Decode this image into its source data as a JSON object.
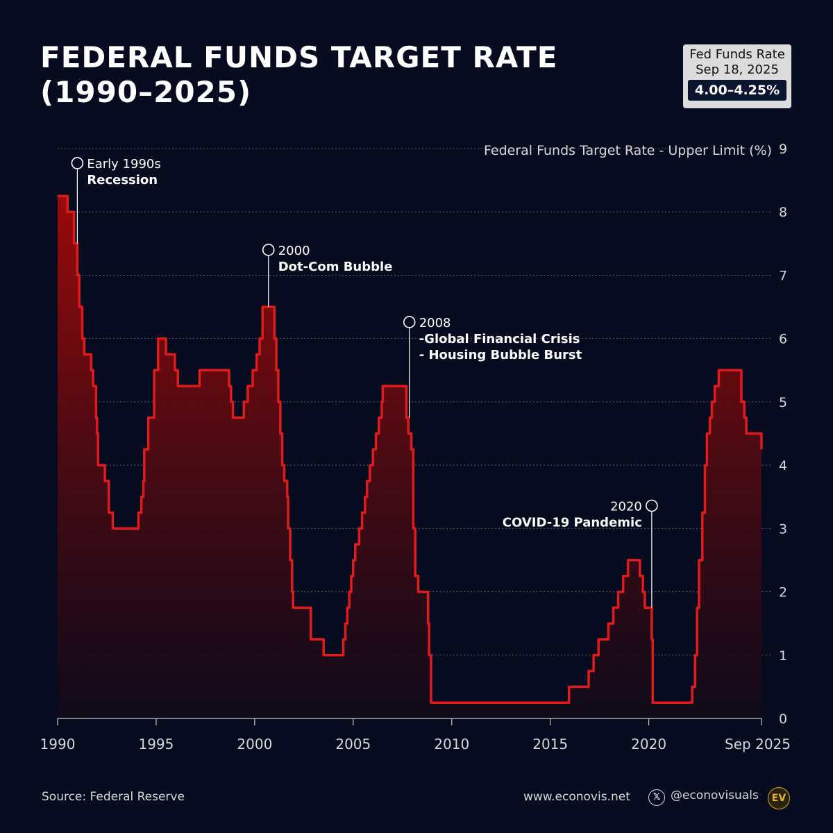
{
  "title": {
    "line1": "FEDERAL FUNDS TARGET RATE",
    "line2": "(1990–2025)"
  },
  "rate_box": {
    "label1": "Fed Funds Rate",
    "label2": "Sep 18, 2025",
    "value": "4.00–4.25%"
  },
  "footer": {
    "source": "Source: Federal Reserve",
    "website": "www.econovis.net",
    "handle": "@econovisuals",
    "x_icon": "x-logo-icon",
    "brand_icon": "EV"
  },
  "colors": {
    "background": "#060b1f",
    "line": "#e01b1b",
    "fill_top": "#9a0a0a",
    "gridline": "#5a5f70",
    "badge": "#dcdcdc"
  },
  "chart_data": {
    "type": "area",
    "ylabel": "Federal Funds Target Rate - Upper Limit (%)",
    "ylim": [
      0,
      9
    ],
    "yticks": [
      0,
      1,
      2,
      3,
      4,
      5,
      6,
      7,
      8,
      9
    ],
    "xlim": [
      1990,
      2025.72
    ],
    "xticks": [
      {
        "value": 1990,
        "label": "1990"
      },
      {
        "value": 1995,
        "label": "1995"
      },
      {
        "value": 2000,
        "label": "2000"
      },
      {
        "value": 2005,
        "label": "2005"
      },
      {
        "value": 2010,
        "label": "2010"
      },
      {
        "value": 2015,
        "label": "2015"
      },
      {
        "value": 2020,
        "label": "2020"
      },
      {
        "value": 2025.72,
        "label": "Sep 2025"
      }
    ],
    "grid": true,
    "step": true,
    "series": [
      {
        "points": [
          [
            1990.0,
            8.25
          ],
          [
            1990.5,
            8.0
          ],
          [
            1990.83,
            7.5
          ],
          [
            1991.0,
            7.0
          ],
          [
            1991.1,
            6.5
          ],
          [
            1991.25,
            6.0
          ],
          [
            1991.35,
            5.75
          ],
          [
            1991.7,
            5.5
          ],
          [
            1991.8,
            5.25
          ],
          [
            1991.95,
            4.75
          ],
          [
            1992.0,
            4.5
          ],
          [
            1992.05,
            4.0
          ],
          [
            1992.4,
            3.75
          ],
          [
            1992.6,
            3.25
          ],
          [
            1992.8,
            3.0
          ],
          [
            1994.1,
            3.25
          ],
          [
            1994.25,
            3.5
          ],
          [
            1994.35,
            3.75
          ],
          [
            1994.4,
            4.25
          ],
          [
            1994.6,
            4.75
          ],
          [
            1994.9,
            5.5
          ],
          [
            1995.1,
            6.0
          ],
          [
            1995.5,
            5.75
          ],
          [
            1995.95,
            5.5
          ],
          [
            1996.1,
            5.25
          ],
          [
            1997.2,
            5.5
          ],
          [
            1998.7,
            5.25
          ],
          [
            1998.8,
            5.0
          ],
          [
            1998.9,
            4.75
          ],
          [
            1999.45,
            5.0
          ],
          [
            1999.65,
            5.25
          ],
          [
            1999.9,
            5.5
          ],
          [
            2000.1,
            5.75
          ],
          [
            2000.25,
            6.0
          ],
          [
            2000.4,
            6.5
          ],
          [
            2001.0,
            6.0
          ],
          [
            2001.1,
            5.5
          ],
          [
            2001.2,
            5.0
          ],
          [
            2001.3,
            4.5
          ],
          [
            2001.4,
            4.0
          ],
          [
            2001.5,
            3.75
          ],
          [
            2001.65,
            3.5
          ],
          [
            2001.7,
            3.0
          ],
          [
            2001.8,
            2.5
          ],
          [
            2001.9,
            2.0
          ],
          [
            2001.95,
            1.75
          ],
          [
            2002.85,
            1.25
          ],
          [
            2003.5,
            1.0
          ],
          [
            2004.5,
            1.25
          ],
          [
            2004.6,
            1.5
          ],
          [
            2004.7,
            1.75
          ],
          [
            2004.8,
            2.0
          ],
          [
            2004.9,
            2.25
          ],
          [
            2005.0,
            2.5
          ],
          [
            2005.1,
            2.75
          ],
          [
            2005.3,
            3.0
          ],
          [
            2005.45,
            3.25
          ],
          [
            2005.6,
            3.5
          ],
          [
            2005.7,
            3.75
          ],
          [
            2005.85,
            4.0
          ],
          [
            2006.0,
            4.25
          ],
          [
            2006.15,
            4.5
          ],
          [
            2006.3,
            4.75
          ],
          [
            2006.45,
            5.0
          ],
          [
            2006.5,
            5.25
          ],
          [
            2007.7,
            4.75
          ],
          [
            2007.8,
            4.5
          ],
          [
            2007.95,
            4.25
          ],
          [
            2008.05,
            3.0
          ],
          [
            2008.15,
            2.25
          ],
          [
            2008.3,
            2.0
          ],
          [
            2008.8,
            1.5
          ],
          [
            2008.85,
            1.0
          ],
          [
            2008.95,
            0.25
          ],
          [
            2015.95,
            0.5
          ],
          [
            2016.95,
            0.75
          ],
          [
            2017.2,
            1.0
          ],
          [
            2017.45,
            1.25
          ],
          [
            2017.95,
            1.5
          ],
          [
            2018.2,
            1.75
          ],
          [
            2018.45,
            2.0
          ],
          [
            2018.7,
            2.25
          ],
          [
            2018.95,
            2.5
          ],
          [
            2019.55,
            2.25
          ],
          [
            2019.7,
            2.0
          ],
          [
            2019.8,
            1.75
          ],
          [
            2020.15,
            1.25
          ],
          [
            2020.2,
            0.25
          ],
          [
            2022.2,
            0.5
          ],
          [
            2022.35,
            1.0
          ],
          [
            2022.45,
            1.75
          ],
          [
            2022.55,
            2.5
          ],
          [
            2022.72,
            3.25
          ],
          [
            2022.85,
            4.0
          ],
          [
            2022.95,
            4.5
          ],
          [
            2023.1,
            4.75
          ],
          [
            2023.2,
            5.0
          ],
          [
            2023.35,
            5.25
          ],
          [
            2023.55,
            5.5
          ],
          [
            2024.7,
            5.0
          ],
          [
            2024.85,
            4.75
          ],
          [
            2024.95,
            4.5
          ],
          [
            2025.72,
            4.25
          ]
        ]
      }
    ],
    "annotations": [
      {
        "x": 1991.0,
        "y": 7.5,
        "line1": "Early 1990s",
        "line2": "Recession",
        "side": "right",
        "label_y": 8.77
      },
      {
        "x": 2000.7,
        "y": 6.5,
        "line1": "2000",
        "line2": "Dot-Com Bubble",
        "side": "right",
        "label_y": 7.4
      },
      {
        "x": 2007.85,
        "y": 4.75,
        "line1": "2008",
        "line2": "-Global Financial Crisis",
        "line3": "- Housing Bubble Burst",
        "side": "right",
        "label_y": 6.26
      },
      {
        "x": 2020.15,
        "y": 1.75,
        "line1": "2020",
        "line2": "COVID-19 Pandemic",
        "side": "left",
        "label_y": 3.36
      }
    ]
  }
}
